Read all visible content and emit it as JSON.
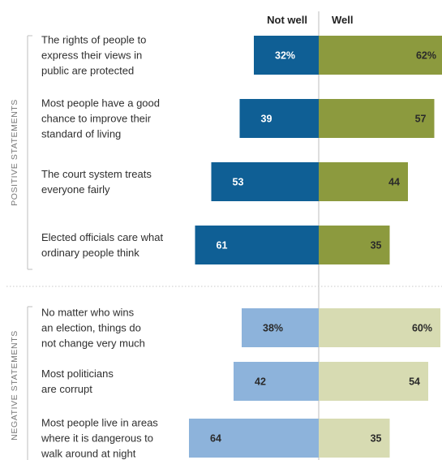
{
  "chart_data": {
    "type": "bar",
    "orientation": "horizontal-diverging",
    "column_headers": {
      "left": "Not well",
      "right": "Well"
    },
    "groups": [
      {
        "name": "POSITIVE STATEMENTS",
        "left_color": "#0f5f95",
        "right_color": "#8c9a3e",
        "left_text_color": "#ffffff",
        "right_text_color": "#2a2a2a",
        "items": [
          {
            "label": [
              "The rights of people to",
              "express their views in",
              "public are protected"
            ],
            "not_well": 32,
            "well": 62,
            "not_well_label": "32%",
            "well_label": "62%"
          },
          {
            "label": [
              "Most people have a good",
              "chance to improve their",
              "standard of living"
            ],
            "not_well": 39,
            "well": 57,
            "not_well_label": "39",
            "well_label": "57"
          },
          {
            "label": [
              "The court system treats",
              "everyone fairly"
            ],
            "not_well": 53,
            "well": 44,
            "not_well_label": "53",
            "well_label": "44"
          },
          {
            "label": [
              "Elected officials care what",
              "ordinary people think"
            ],
            "not_well": 61,
            "well": 35,
            "not_well_label": "61",
            "well_label": "35"
          }
        ]
      },
      {
        "name": "NEGATIVE STATEMENTS",
        "left_color": "#8db3db",
        "right_color": "#d7dbb2",
        "left_text_color": "#2a2a2a",
        "right_text_color": "#2a2a2a",
        "items": [
          {
            "label": [
              "No matter who wins",
              "an election, things do",
              "not change very much"
            ],
            "not_well": 38,
            "well": 60,
            "not_well_label": "38%",
            "well_label": "60%"
          },
          {
            "label": [
              "Most politicians",
              "are corrupt"
            ],
            "not_well": 42,
            "well": 54,
            "not_well_label": "42",
            "well_label": "54"
          },
          {
            "label": [
              "Most people live in areas",
              "where it is dangerous to",
              "walk around at night"
            ],
            "not_well": 64,
            "well": 35,
            "not_well_label": "64",
            "well_label": "35"
          }
        ]
      }
    ]
  }
}
